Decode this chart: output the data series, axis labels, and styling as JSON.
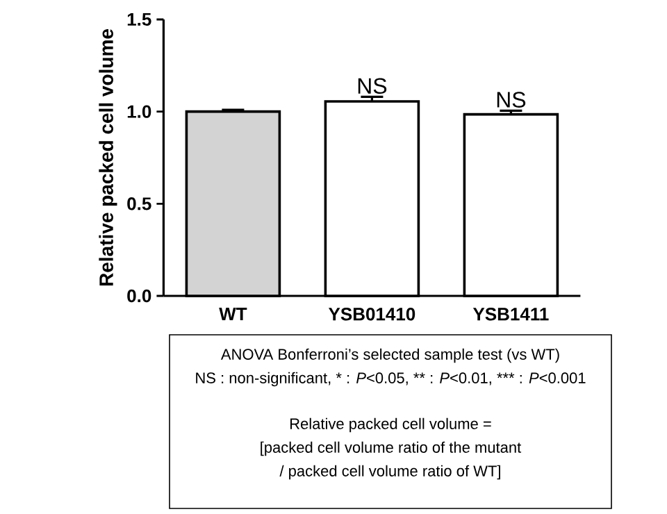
{
  "chart_data": {
    "type": "bar",
    "ylabel": "Relative packed cell volume",
    "categories": [
      "WT",
      "YSB01410",
      "YSB1411"
    ],
    "values": [
      1.0,
      1.055,
      0.985
    ],
    "errors": [
      0.01,
      0.025,
      0.02
    ],
    "colors": [
      "#d3d3d3",
      "#ffffff",
      "#ffffff"
    ],
    "ylim": [
      0,
      1.5
    ],
    "yticks": [
      {
        "value": 0,
        "label": "0.0"
      },
      {
        "value": 0.5,
        "label": "0.5"
      },
      {
        "value": 1,
        "label": "1.0"
      },
      {
        "value": 1.5,
        "label": "1.5"
      }
    ],
    "grid": false,
    "annotations": [
      {
        "text": "NS",
        "x": "YSB01410",
        "y": 1.08
      },
      {
        "text": "NS",
        "x": "YSB1411",
        "y": 1.005
      },
      "ANOVA Bonferroni’s selected sample test (vs WT)",
      "NS : non-significant, * : *P*<0.05, ** : *P*<0.01, *** : *P*<0.001",
      "Relative packed cell volume =",
      "[packed cell volume ratio of the mutant",
      "/ packed cell volume ratio of WT]"
    ]
  }
}
